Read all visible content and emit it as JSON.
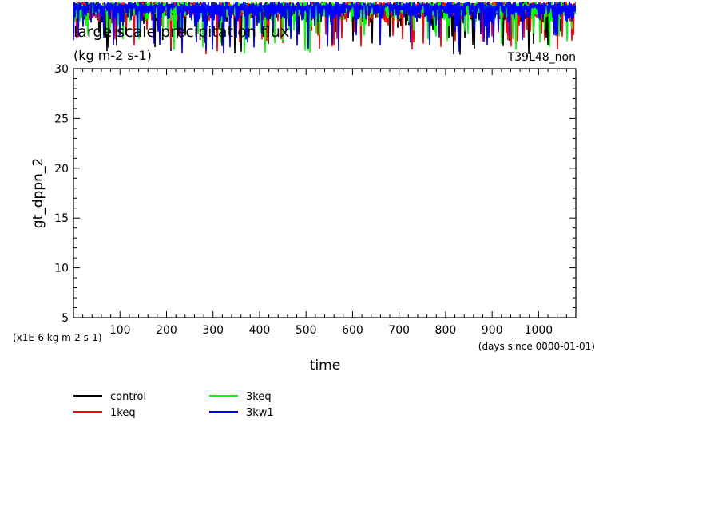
{
  "chart_data": {
    "type": "line",
    "title": "large scale precipitation flux",
    "units": "(kg m-2 s-1)",
    "run_label": "T39L48_non",
    "ylabel": "gt_dppn_2",
    "xlabel": "time",
    "x_unit_note": "(days since 0000-01-01)",
    "y_unit_note": "(x1E-6 kg m-2 s-1)",
    "xlim": [
      0,
      1080
    ],
    "ylim": [
      5,
      30
    ],
    "x_ticks": [
      "100",
      "200",
      "300",
      "400",
      "500",
      "600",
      "700",
      "800",
      "900",
      "1000"
    ],
    "y_ticks": [
      "5",
      "10",
      "15",
      "20",
      "25",
      "30"
    ],
    "grid": false,
    "legend_position": "bottom-left",
    "series": [
      {
        "name": "control",
        "color": "#000000"
      },
      {
        "name": "1keq",
        "color": "#ff0000"
      },
      {
        "name": "3keq",
        "color": "#00ff00"
      },
      {
        "name": "3kw1",
        "color": "#0000ff"
      }
    ]
  }
}
